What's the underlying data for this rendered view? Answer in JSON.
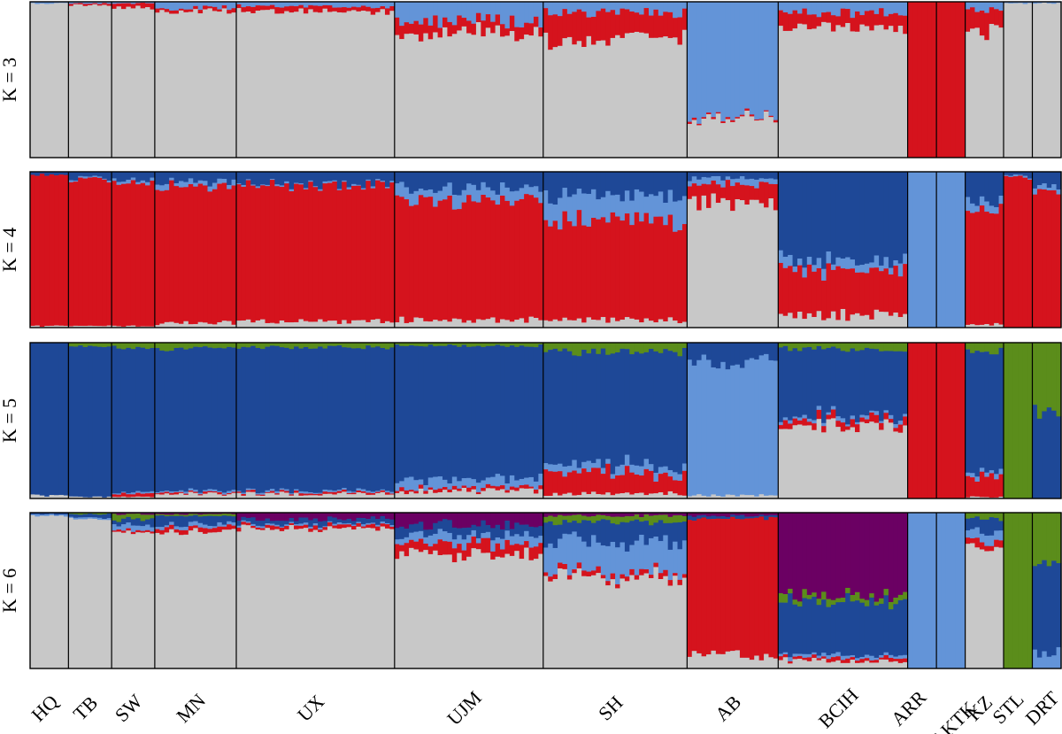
{
  "chart_data": {
    "type": "stacked-bar (admixture/STRUCTURE plot)",
    "populations": [
      {
        "name": "HQ",
        "n": 8
      },
      {
        "name": "TB",
        "n": 9
      },
      {
        "name": "SW",
        "n": 9
      },
      {
        "name": "MN",
        "n": 17
      },
      {
        "name": "UX",
        "n": 33
      },
      {
        "name": "UJM",
        "n": 31
      },
      {
        "name": "SH",
        "n": 30
      },
      {
        "name": "AB",
        "n": 19
      },
      {
        "name": "BCIH",
        "n": 27
      },
      {
        "name": "ARR",
        "n": 6
      },
      {
        "name": "AKTK",
        "n": 6
      },
      {
        "name": "KZ",
        "n": 8
      },
      {
        "name": "STL",
        "n": 6
      },
      {
        "name": "DRT",
        "n": 6
      }
    ],
    "colors": {
      "grey": "#c8c8c8",
      "red": "#d5131d",
      "light_blue": "#6394d8",
      "dark_blue": "#1e4897",
      "green": "#5b8d1b",
      "purple": "#6b0063"
    },
    "panels": [
      {
        "label": "K = 3",
        "component_order": [
          "grey",
          "red",
          "light_blue"
        ],
        "population_means": {
          "HQ": [
            0.99,
            0.0,
            0.01
          ],
          "TB": [
            0.98,
            0.01,
            0.01
          ],
          "SW": [
            0.96,
            0.03,
            0.01
          ],
          "MN": [
            0.94,
            0.02,
            0.04
          ],
          "UX": [
            0.94,
            0.03,
            0.03
          ],
          "UJM": [
            0.8,
            0.08,
            0.12
          ],
          "SH": [
            0.76,
            0.17,
            0.07
          ],
          "AB": [
            0.25,
            0.01,
            0.74
          ],
          "BCIH": [
            0.83,
            0.1,
            0.07
          ],
          "ARR": [
            0.0,
            1.0,
            0.0
          ],
          "AKTK": [
            0.0,
            1.0,
            0.0
          ],
          "KZ": [
            0.82,
            0.13,
            0.05
          ],
          "STL": [
            0.99,
            0.0,
            0.01
          ],
          "DRT": [
            0.99,
            0.0,
            0.01
          ]
        }
      },
      {
        "label": "K = 4",
        "component_order": [
          "grey",
          "red",
          "light_blue",
          "dark_blue"
        ],
        "population_means": {
          "HQ": [
            0.01,
            0.97,
            0.0,
            0.02
          ],
          "TB": [
            0.01,
            0.94,
            0.01,
            0.04
          ],
          "SW": [
            0.01,
            0.92,
            0.02,
            0.05
          ],
          "MN": [
            0.03,
            0.87,
            0.03,
            0.07
          ],
          "UX": [
            0.04,
            0.87,
            0.01,
            0.08
          ],
          "UJM": [
            0.05,
            0.77,
            0.07,
            0.11
          ],
          "SH": [
            0.05,
            0.64,
            0.16,
            0.15
          ],
          "AB": [
            0.8,
            0.12,
            0.04,
            0.04
          ],
          "BCIH": [
            0.08,
            0.3,
            0.06,
            0.56
          ],
          "ARR": [
            0.0,
            0.0,
            1.0,
            0.0
          ],
          "AKTK": [
            0.0,
            0.0,
            1.0,
            0.0
          ],
          "KZ": [
            0.02,
            0.72,
            0.06,
            0.2
          ],
          "STL": [
            0.0,
            0.96,
            0.01,
            0.03
          ],
          "DRT": [
            0.0,
            0.88,
            0.03,
            0.09
          ]
        }
      },
      {
        "label": "K = 5",
        "component_order": [
          "grey",
          "red",
          "light_blue",
          "dark_blue",
          "green"
        ],
        "population_means": {
          "HQ": [
            0.02,
            0.0,
            0.0,
            0.98,
            0.0
          ],
          "TB": [
            0.01,
            0.0,
            0.0,
            0.97,
            0.02
          ],
          "SW": [
            0.01,
            0.02,
            0.01,
            0.93,
            0.03
          ],
          "MN": [
            0.03,
            0.01,
            0.01,
            0.91,
            0.04
          ],
          "UX": [
            0.03,
            0.01,
            0.01,
            0.92,
            0.03
          ],
          "UJM": [
            0.05,
            0.02,
            0.06,
            0.85,
            0.02
          ],
          "SH": [
            0.03,
            0.13,
            0.05,
            0.73,
            0.06
          ],
          "AB": [
            0.02,
            0.0,
            0.86,
            0.12,
            0.0
          ],
          "BCIH": [
            0.47,
            0.04,
            0.02,
            0.43,
            0.04
          ],
          "ARR": [
            0.0,
            1.0,
            0.0,
            0.0,
            0.0
          ],
          "AKTK": [
            0.0,
            1.0,
            0.0,
            0.0,
            0.0
          ],
          "KZ": [
            0.01,
            0.12,
            0.03,
            0.78,
            0.06
          ],
          "STL": [
            0.0,
            0.0,
            0.0,
            0.0,
            1.0
          ],
          "DRT": [
            0.0,
            0.0,
            0.0,
            0.55,
            0.45
          ]
        }
      },
      {
        "label": "K = 6",
        "component_order": [
          "grey",
          "red",
          "light_blue",
          "dark_blue",
          "green",
          "purple"
        ],
        "population_means": {
          "HQ": [
            0.98,
            0.0,
            0.01,
            0.01,
            0.0,
            0.0
          ],
          "TB": [
            0.96,
            0.0,
            0.01,
            0.02,
            0.01,
            0.0
          ],
          "SW": [
            0.88,
            0.01,
            0.03,
            0.04,
            0.03,
            0.01
          ],
          "MN": [
            0.88,
            0.03,
            0.02,
            0.05,
            0.01,
            0.01
          ],
          "UX": [
            0.9,
            0.02,
            0.01,
            0.03,
            0.0,
            0.04
          ],
          "UJM": [
            0.74,
            0.07,
            0.05,
            0.06,
            0.0,
            0.08
          ],
          "SH": [
            0.58,
            0.03,
            0.2,
            0.13,
            0.04,
            0.02
          ],
          "AB": [
            0.09,
            0.87,
            0.0,
            0.02,
            0.0,
            0.02
          ],
          "BCIH": [
            0.05,
            0.02,
            0.02,
            0.35,
            0.04,
            0.52
          ],
          "ARR": [
            0.0,
            0.0,
            1.0,
            0.0,
            0.0,
            0.0
          ],
          "AKTK": [
            0.0,
            0.0,
            1.0,
            0.0,
            0.0,
            0.0
          ],
          "KZ": [
            0.78,
            0.05,
            0.05,
            0.08,
            0.04,
            0.0
          ],
          "STL": [
            0.0,
            0.0,
            0.0,
            0.0,
            1.0,
            0.0
          ],
          "DRT": [
            0.0,
            0.0,
            0.1,
            0.55,
            0.35,
            0.0
          ]
        }
      }
    ]
  }
}
